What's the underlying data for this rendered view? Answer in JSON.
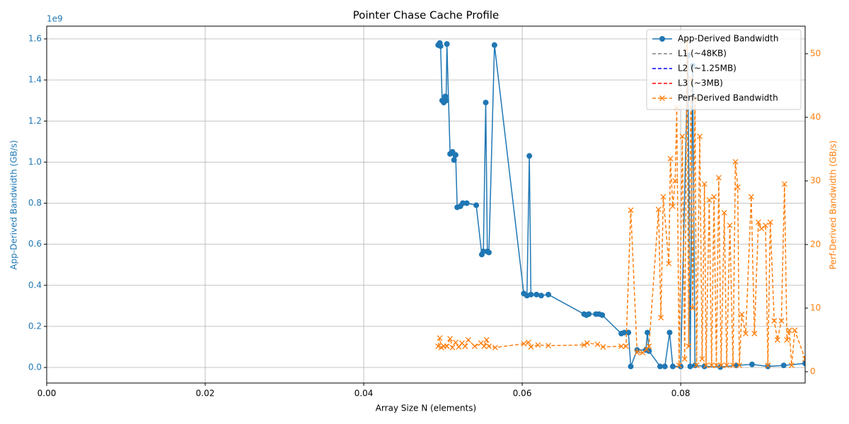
{
  "chart_data": {
    "type": "line",
    "title": "Pointer Chase Cache Profile",
    "x_label": "Array Size N (elements)",
    "y_label": "App-Derived Bandwidth (GB/s)",
    "y2_label": "Perf-Derived Bandwidth (GB/s)",
    "y_offset_label": "1e9",
    "xlim": [
      0,
      0.0957
    ],
    "xticks": [
      {
        "value": 0,
        "label": "0.00"
      },
      0.02,
      0.04,
      0.06,
      0.08
    ],
    "ylim": [
      -0.0757,
      1.662
    ],
    "yticks": [
      {
        "value": 0,
        "label": "0.0"
      },
      0.2,
      0.4,
      0.6,
      0.8,
      {
        "value": 1,
        "label": "1.0"
      },
      1.2,
      1.4,
      1.6
    ],
    "y2lim": [
      -1.78,
      54.33
    ],
    "y2ticks": [
      0,
      10,
      20,
      30,
      40,
      50
    ],
    "grid": true,
    "legend": "upper right",
    "series": [
      {
        "name": "App-Derived Bandwidth",
        "color": "#1f77b4",
        "linestyle": "solid",
        "marker": "o",
        "x": [
          0.0494,
          0.0496,
          0.0497,
          0.0499,
          0.0501,
          0.0503,
          0.0504,
          0.0505,
          0.0509,
          0.0512,
          0.0514,
          0.0516,
          0.0518,
          0.0522,
          0.0525,
          0.053,
          0.0542,
          0.0549,
          0.0551,
          0.0554,
          0.0556,
          0.0558,
          0.0565,
          0.0602,
          0.0606,
          0.0609,
          0.0611,
          0.0618,
          0.0624,
          0.0633,
          0.0678,
          0.0681,
          0.0684,
          0.0693,
          0.0697,
          0.0701,
          0.0725,
          0.0729,
          0.0734,
          0.0737,
          0.0745,
          0.0756,
          0.0758,
          0.076,
          0.0774,
          0.078,
          0.0786,
          0.079,
          0.08,
          0.0809,
          0.0812,
          0.0815,
          0.0818,
          0.083,
          0.085,
          0.087,
          0.089,
          0.091,
          0.093,
          0.0957
        ],
        "values": [
          1.57,
          1.58,
          1.565,
          1.3,
          1.29,
          1.32,
          1.3,
          1.575,
          1.04,
          1.05,
          1.01,
          1.035,
          0.78,
          0.785,
          0.8,
          0.8,
          0.79,
          0.55,
          0.565,
          1.29,
          0.565,
          0.56,
          1.57,
          0.36,
          0.35,
          1.03,
          0.355,
          0.355,
          0.35,
          0.355,
          0.26,
          0.255,
          0.26,
          0.26,
          0.26,
          0.255,
          0.165,
          0.17,
          0.17,
          0.005,
          0.085,
          0.085,
          0.17,
          0.08,
          0.005,
          0.005,
          0.17,
          0.005,
          0.005,
          1.52,
          0.005,
          1.47,
          0.01,
          0.005,
          0.002,
          0.01,
          0.015,
          0.005,
          0.01,
          0.02
        ]
      },
      {
        "name": "L1 (~48KB)",
        "color": "#808080",
        "linestyle": "dashed",
        "x": [],
        "values": []
      },
      {
        "name": "L2 (~1.25MB)",
        "color": "#0000ff",
        "linestyle": "dashed",
        "x": [],
        "values": []
      },
      {
        "name": "L3 (~3MB)",
        "color": "#ff0000",
        "linestyle": "dashed",
        "x": [],
        "values": []
      },
      {
        "name": "Perf-Derived Bandwidth",
        "color": "#ff7f0e",
        "linestyle": "dashed",
        "marker": "x",
        "axis": "y2",
        "x": [
          0.0494,
          0.0496,
          0.0498,
          0.0501,
          0.0505,
          0.0509,
          0.0512,
          0.0516,
          0.052,
          0.0524,
          0.0528,
          0.0532,
          0.054,
          0.0548,
          0.0552,
          0.0555,
          0.0558,
          0.0566,
          0.0602,
          0.0608,
          0.0611,
          0.062,
          0.0633,
          0.0678,
          0.0682,
          0.0695,
          0.0702,
          0.0725,
          0.0731,
          0.0737,
          0.0745,
          0.0752,
          0.0757,
          0.076,
          0.0772,
          0.0775,
          0.0778,
          0.0785,
          0.0787,
          0.079,
          0.0793,
          0.0795,
          0.0798,
          0.0802,
          0.0805,
          0.0808,
          0.081,
          0.0813,
          0.0815,
          0.0818,
          0.082,
          0.0824,
          0.0827,
          0.083,
          0.0832,
          0.0836,
          0.0839,
          0.0842,
          0.0845,
          0.0848,
          0.0851,
          0.0855,
          0.0858,
          0.0862,
          0.0866,
          0.0869,
          0.0872,
          0.0874,
          0.0877,
          0.0882,
          0.0889,
          0.0893,
          0.0898,
          0.0902,
          0.0907,
          0.091,
          0.0913,
          0.0918,
          0.0922,
          0.0927,
          0.0931,
          0.0934,
          0.0937,
          0.094,
          0.0944,
          0.0957
        ],
        "values": [
          4,
          5.3,
          3.8,
          4,
          4,
          5.2,
          3.8,
          4.6,
          3.9,
          4.5,
          4,
          5,
          4,
          4.5,
          4,
          5,
          4,
          3.8,
          4.4,
          4.6,
          3.9,
          4.2,
          4.1,
          4.2,
          4.5,
          4.3,
          3.9,
          4,
          4,
          25.4,
          3,
          3,
          3.5,
          4,
          25.5,
          8.5,
          27.5,
          17,
          33.5,
          26,
          30,
          41.5,
          1,
          37,
          2,
          52,
          4,
          46,
          10,
          43,
          1,
          37,
          2,
          29.5,
          1,
          27,
          1,
          27.5,
          1,
          30.5,
          1,
          25,
          1,
          23,
          1,
          33,
          29,
          1,
          9,
          6,
          27.5,
          6,
          23.5,
          22.5,
          23,
          1,
          23.5,
          8,
          5,
          8,
          29.5,
          5,
          6.5,
          1,
          6.5,
          2
        ]
      }
    ]
  }
}
